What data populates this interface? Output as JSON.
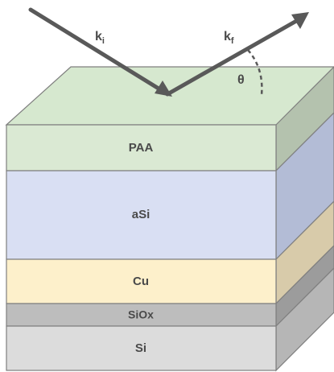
{
  "diagram": {
    "layers": [
      {
        "id": "paa",
        "label": "PAA",
        "front": "#dae9d3",
        "side": "#b4c2ae",
        "top": "#d6e8cf"
      },
      {
        "id": "asi",
        "label": "aSi",
        "front": "#d9dff3",
        "side": "#b3bcd6",
        "top": "#d9dff3"
      },
      {
        "id": "cu",
        "label": "Cu",
        "front": "#fdf0cb",
        "side": "#d8cbaa",
        "top": "#fdf0cb"
      },
      {
        "id": "siox",
        "label": "SiOx",
        "front": "#bdbdbd",
        "side": "#9c9c9c",
        "top": "#bdbdbd"
      },
      {
        "id": "si",
        "label": "Si",
        "front": "#dcdcdc",
        "side": "#b6b6b6",
        "top": "#dcdcdc"
      }
    ],
    "incident_wave": {
      "symbol": "k",
      "subscript": "i"
    },
    "reflected_wave": {
      "symbol": "k",
      "subscript": "f"
    },
    "angle_label": "θ",
    "arrow_color": "#595959",
    "edge_color": "#7f7f7f"
  }
}
